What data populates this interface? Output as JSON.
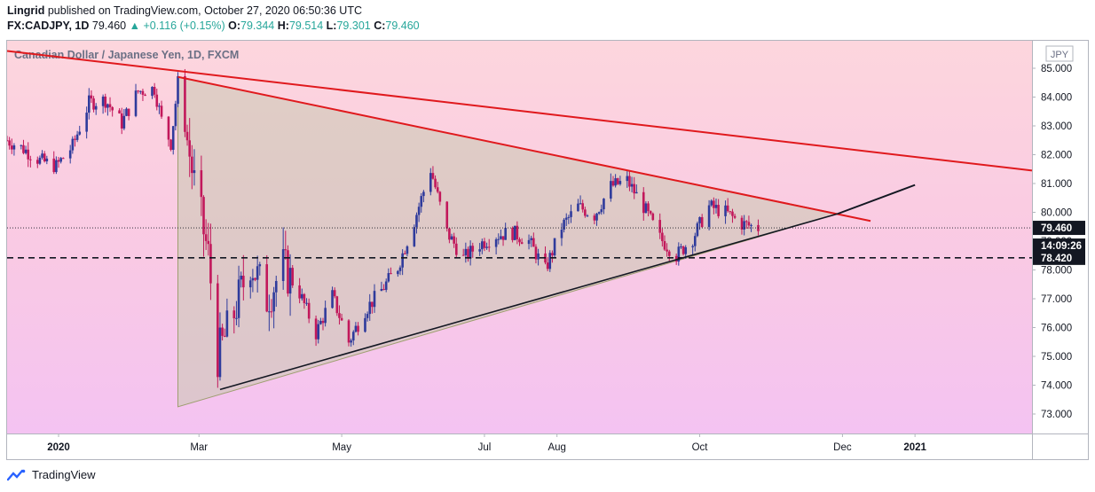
{
  "header": {
    "publisher_line": "Lingrid published on TradingView.com, October 27, 2020 06:50:36 UTC",
    "publisher_name": "Lingrid",
    "symbol_line": "FX:CADJPY, 1D",
    "last": "79.460",
    "change": "+0.116 (+0.15%)",
    "o_label": "O:",
    "o_value": "79.344",
    "h_label": "H:",
    "h_value": "79.514",
    "l_label": "L:",
    "l_value": "79.301",
    "c_label": "C:",
    "c_value": "79.460"
  },
  "footer": {
    "brand": "TradingView"
  },
  "chart_data": {
    "type": "candlestick",
    "title": "Canadian Dollar / Japanese Yen, 1D, FXCM",
    "currency": "JPY",
    "y_range": [
      72.3,
      85.7
    ],
    "y_ticks": [
      "73.000",
      "74.000",
      "75.000",
      "76.000",
      "77.000",
      "78.000",
      "79.000",
      "80.000",
      "81.000",
      "82.000",
      "83.000",
      "84.000",
      "85.000"
    ],
    "x_ticks": [
      "2020",
      "Mar",
      "May",
      "Jul",
      "Aug",
      "Oct",
      "Dec",
      "2021"
    ],
    "x_range": [
      "2019-12-10",
      "2021-02-20"
    ],
    "price_labels": {
      "last": "79.460",
      "countdown": "14:09:26",
      "level": "78.420"
    },
    "horizontal_level": 78.42,
    "last_price": 79.46,
    "colors": {
      "up": "#2f3b9c",
      "down": "#c2185b",
      "upper_trendline": "#e0191d",
      "triangle_fill": "#c9c9b0",
      "projection": "#131722",
      "support": "#1b5e20"
    },
    "upper_trendline": {
      "from": [
        "2019-12-10",
        85.6
      ],
      "to": [
        "2021-02-20",
        81.45
      ]
    },
    "triangle": {
      "apex_high": [
        "2020-02-21",
        84.7
      ],
      "base_low": [
        "2020-02-21",
        73.25
      ],
      "apex": [
        "2020-11-29",
        79.95
      ]
    },
    "triangle_upper_extension": {
      "from": [
        "2020-11-29",
        80.15
      ],
      "to": [
        "2020-12-13",
        79.7
      ]
    },
    "support_line": {
      "from": [
        "2020-03-10",
        73.85
      ],
      "to": [
        "2020-11-29",
        79.95
      ]
    },
    "projection_line": {
      "from": [
        "2020-11-29",
        79.95
      ],
      "to": [
        "2021-01-01",
        80.95
      ]
    },
    "ohlc_approx": [
      [
        "2019-12-10",
        82.5
      ],
      [
        "2019-12-17",
        82.2
      ],
      [
        "2019-12-24",
        81.8
      ],
      [
        "2019-12-31",
        81.6
      ],
      [
        "2020-01-07",
        82.3
      ],
      [
        "2020-01-14",
        83.8
      ],
      [
        "2020-01-21",
        83.9
      ],
      [
        "2020-01-28",
        83.1
      ],
      [
        "2020-02-04",
        84.2
      ],
      [
        "2020-02-11",
        84.3
      ],
      [
        "2020-02-14",
        83.2
      ],
      [
        "2020-02-18",
        82.4
      ],
      [
        "2020-02-21",
        84.5
      ],
      [
        "2020-02-28",
        81.0
      ],
      [
        "2020-03-05",
        78.5
      ],
      [
        "2020-03-09",
        75.0
      ],
      [
        "2020-03-16",
        76.5
      ],
      [
        "2020-03-23",
        78.3
      ],
      [
        "2020-03-30",
        77.0
      ],
      [
        "2020-04-06",
        78.1
      ],
      [
        "2020-04-13",
        77.2
      ],
      [
        "2020-04-20",
        75.8
      ],
      [
        "2020-04-27",
        77.1
      ],
      [
        "2020-05-04",
        75.5
      ],
      [
        "2020-05-11",
        76.6
      ],
      [
        "2020-05-18",
        77.3
      ],
      [
        "2020-05-25",
        78.1
      ],
      [
        "2020-06-01",
        79.7
      ],
      [
        "2020-06-08",
        81.5
      ],
      [
        "2020-06-15",
        79.3
      ],
      [
        "2020-06-22",
        78.4
      ],
      [
        "2020-06-29",
        78.9
      ],
      [
        "2020-07-06",
        79.2
      ],
      [
        "2020-07-13",
        79.3
      ],
      [
        "2020-07-20",
        79.0
      ],
      [
        "2020-07-27",
        78.0
      ],
      [
        "2020-08-03",
        79.5
      ],
      [
        "2020-08-10",
        80.2
      ],
      [
        "2020-08-17",
        79.9
      ],
      [
        "2020-08-24",
        80.9
      ],
      [
        "2020-08-31",
        81.1
      ],
      [
        "2020-09-07",
        80.2
      ],
      [
        "2020-09-14",
        79.1
      ],
      [
        "2020-09-21",
        78.5
      ],
      [
        "2020-09-28",
        79.1
      ],
      [
        "2020-10-05",
        80.2
      ],
      [
        "2020-10-12",
        80.0
      ],
      [
        "2020-10-19",
        79.6
      ],
      [
        "2020-10-26",
        79.46
      ]
    ]
  }
}
